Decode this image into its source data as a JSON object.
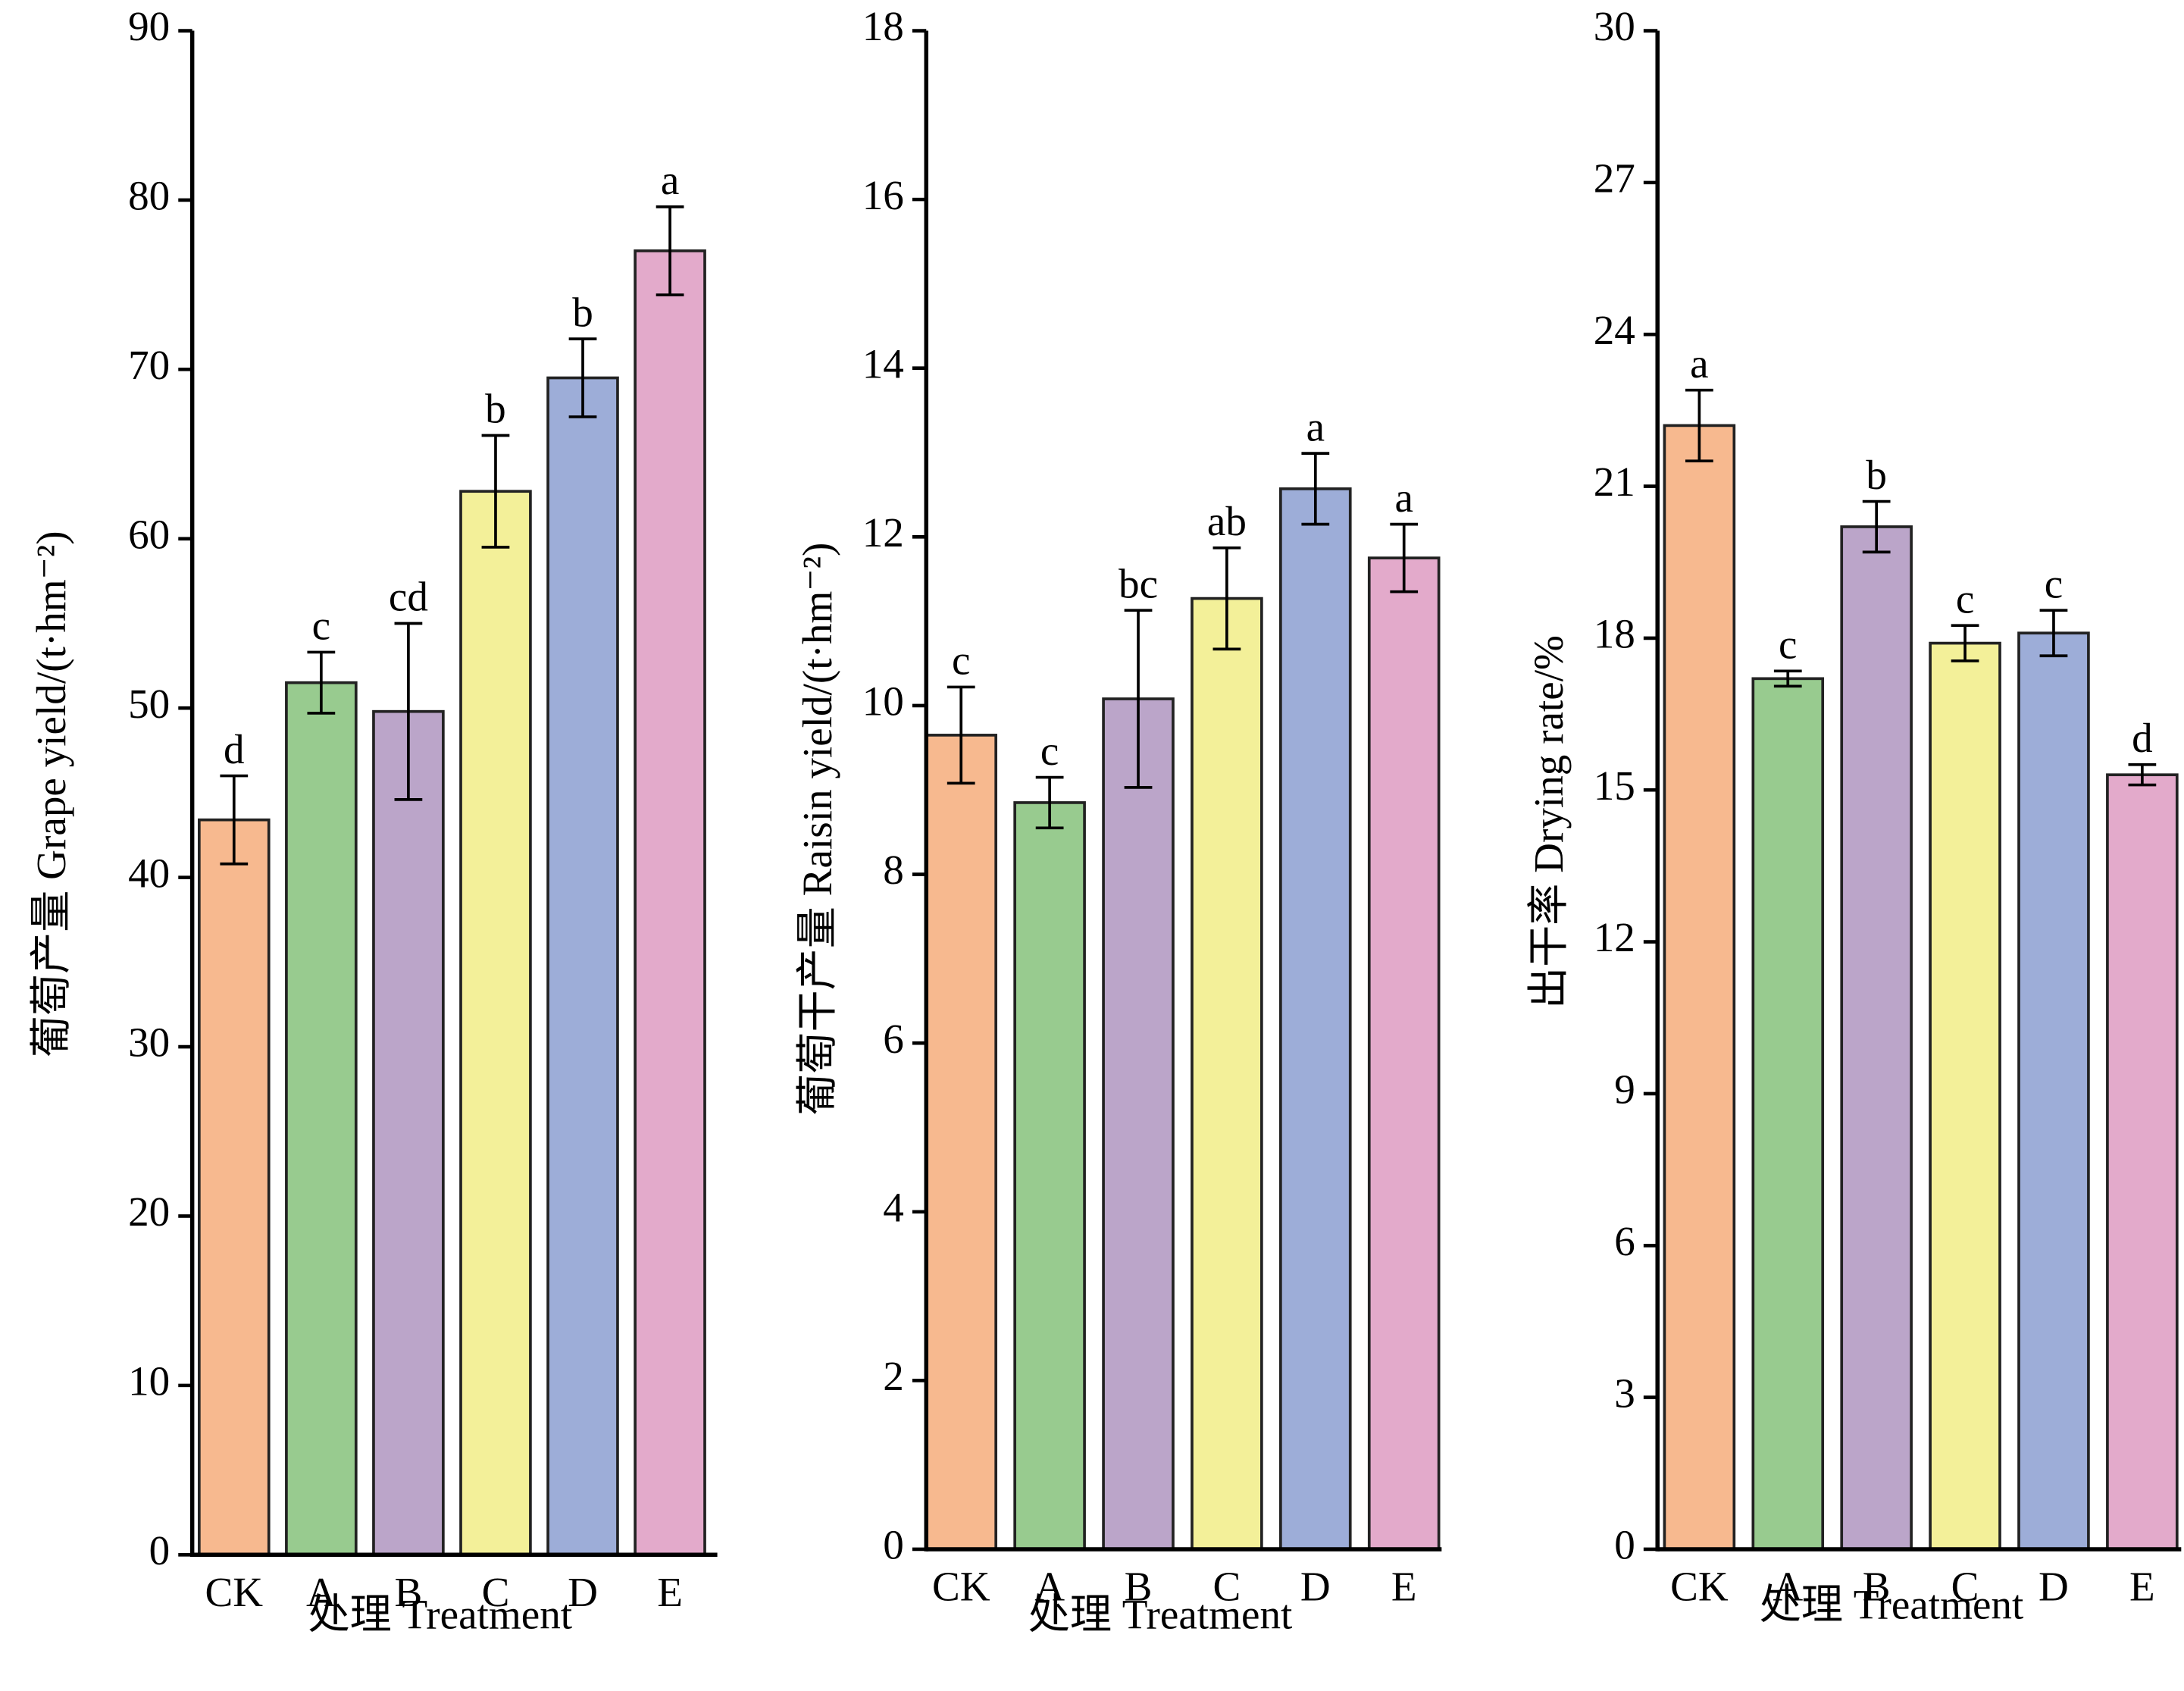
{
  "chart_data": [
    {
      "type": "bar",
      "categories": [
        "CK",
        "A",
        "B",
        "C",
        "D",
        "E"
      ],
      "values": [
        43.4,
        51.5,
        49.8,
        62.8,
        69.5,
        77.0
      ],
      "errors": [
        2.6,
        1.8,
        5.2,
        3.3,
        2.3,
        2.6
      ],
      "annotations": [
        "d",
        "c",
        "cd",
        "b",
        "b",
        "a"
      ],
      "colors": [
        "#f7b98f",
        "#98cb8f",
        "#bba5c9",
        "#f3f099",
        "#9dadd8",
        "#e3aacb"
      ],
      "ylabel": "葡萄产量 Grape yield/(t·hm⁻²)",
      "xlabel": "处理 Treatment",
      "ylim": [
        0,
        90
      ],
      "yticks": [
        0,
        10,
        20,
        30,
        40,
        50,
        60,
        70,
        80,
        90
      ]
    },
    {
      "type": "bar",
      "categories": [
        "CK",
        "A",
        "B",
        "C",
        "D",
        "E"
      ],
      "values": [
        9.65,
        8.85,
        10.08,
        11.27,
        12.57,
        11.75
      ],
      "errors": [
        0.57,
        0.3,
        1.05,
        0.6,
        0.42,
        0.4
      ],
      "annotations": [
        "c",
        "c",
        "bc",
        "ab",
        "a",
        "a"
      ],
      "colors": [
        "#f7b98f",
        "#98cb8f",
        "#bba5c9",
        "#f3f099",
        "#9dadd8",
        "#e3aacb"
      ],
      "ylabel": "葡萄干产量 Raisin yield/(t·hm⁻²)",
      "xlabel": "处理 Treatment",
      "ylim": [
        0,
        18
      ],
      "yticks": [
        0,
        2,
        4,
        6,
        8,
        10,
        12,
        14,
        16,
        18
      ]
    },
    {
      "type": "bar",
      "categories": [
        "CK",
        "A",
        "B",
        "C",
        "D",
        "E"
      ],
      "values": [
        22.2,
        17.2,
        20.2,
        17.9,
        18.1,
        15.3
      ],
      "errors": [
        0.7,
        0.15,
        0.5,
        0.35,
        0.45,
        0.2
      ],
      "annotations": [
        "a",
        "c",
        "b",
        "c",
        "c",
        "d"
      ],
      "colors": [
        "#f7b98f",
        "#98cb8f",
        "#bba5c9",
        "#f3f099",
        "#9dadd8",
        "#e3aacb"
      ],
      "ylabel": "出干率 Drying rate/%",
      "xlabel": "处理 Treatment",
      "ylim": [
        0,
        30
      ],
      "yticks": [
        0,
        3,
        6,
        9,
        12,
        15,
        18,
        21,
        24,
        27,
        30
      ]
    }
  ]
}
